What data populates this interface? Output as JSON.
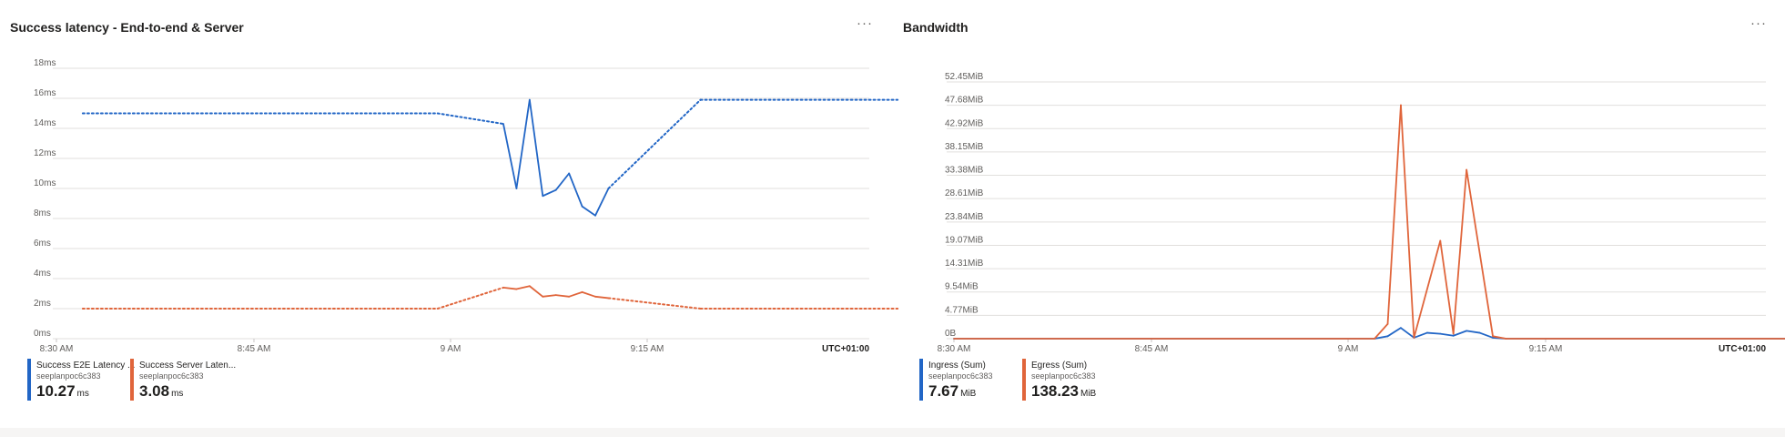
{
  "panels": [
    {
      "title": "Success latency - End-to-end & Server",
      "more_label": "···"
    },
    {
      "title": "Bandwidth",
      "more_label": "···"
    }
  ],
  "chart_data": [
    {
      "type": "line",
      "title": "Success latency - End-to-end & Server",
      "x_ticks": [
        "8:30 AM",
        "8:45 AM",
        "9 AM",
        "9:15 AM"
      ],
      "timezone": "UTC+01:00",
      "y_ticks": [
        "18ms",
        "16ms",
        "14ms",
        "12ms",
        "10ms",
        "8ms",
        "6ms",
        "4ms",
        "2ms",
        "0ms"
      ],
      "ylim": [
        0,
        18
      ],
      "y_unit": "ms",
      "grid": true,
      "legend_position": "bottom",
      "series": [
        {
          "name": "Success E2E Latency ...",
          "resource": "seeplanpoc6c383",
          "summary_value": "10.27",
          "summary_unit": "ms",
          "color": "#2266c6",
          "x": [
            "8:32",
            "8:59",
            "9:04",
            "9:05",
            "9:06",
            "9:07",
            "9:08",
            "9:09",
            "9:10",
            "9:11",
            "9:12",
            "9:19",
            "9:34"
          ],
          "values": [
            15.0,
            15.0,
            14.3,
            10.0,
            15.9,
            9.5,
            9.9,
            11.0,
            8.8,
            8.2,
            10.0,
            15.9,
            15.9
          ],
          "dashed_ranges": [
            [
              0,
              2
            ],
            [
              10,
              12
            ]
          ]
        },
        {
          "name": "Success Server Laten...",
          "resource": "seeplanpoc6c383",
          "summary_value": "3.08",
          "summary_unit": "ms",
          "color": "#e0653b",
          "x": [
            "8:32",
            "8:59",
            "9:04",
            "9:05",
            "9:06",
            "9:07",
            "9:08",
            "9:09",
            "9:10",
            "9:11",
            "9:12",
            "9:19",
            "9:34"
          ],
          "values": [
            2.0,
            2.0,
            3.4,
            3.3,
            3.5,
            2.8,
            2.9,
            2.8,
            3.1,
            2.8,
            2.7,
            2.0,
            2.0
          ],
          "dashed_ranges": [
            [
              0,
              2
            ],
            [
              10,
              12
            ]
          ]
        }
      ]
    },
    {
      "type": "line",
      "title": "Bandwidth",
      "x_ticks": [
        "8:30 AM",
        "8:45 AM",
        "9 AM",
        "9:15 AM"
      ],
      "timezone": "UTC+01:00",
      "y_ticks": [
        "52.45MiB",
        "47.68MiB",
        "42.92MiB",
        "38.15MiB",
        "33.38MiB",
        "28.61MiB",
        "23.84MiB",
        "19.07MiB",
        "14.31MiB",
        "9.54MiB",
        "4.77MiB",
        "0B"
      ],
      "ylim": [
        0,
        52.45
      ],
      "y_unit": "MiB",
      "grid": true,
      "legend_position": "bottom",
      "series": [
        {
          "name": "Ingress (Sum)",
          "resource": "seeplanpoc6c383",
          "summary_value": "7.67",
          "summary_unit": "MiB",
          "color": "#2266c6",
          "x": [
            "8:30",
            "9:02",
            "9:03",
            "9:04",
            "9:05",
            "9:06",
            "9:07",
            "9:08",
            "9:09",
            "9:10",
            "9:11",
            "9:12",
            "9:40"
          ],
          "values": [
            0,
            0,
            0.5,
            2.2,
            0.2,
            1.2,
            1.0,
            0.6,
            1.6,
            1.2,
            0.2,
            0,
            0
          ]
        },
        {
          "name": "Egress (Sum)",
          "resource": "seeplanpoc6c383",
          "summary_value": "138.23",
          "summary_unit": "MiB",
          "color": "#e0653b",
          "x": [
            "8:30",
            "9:02",
            "9:03",
            "9:04",
            "9:05",
            "9:07",
            "9:08",
            "9:09",
            "9:11",
            "9:12",
            "9:40"
          ],
          "values": [
            0,
            0,
            3.0,
            47.7,
            0.2,
            20.0,
            1.0,
            34.5,
            0.5,
            0,
            0
          ]
        }
      ]
    }
  ]
}
